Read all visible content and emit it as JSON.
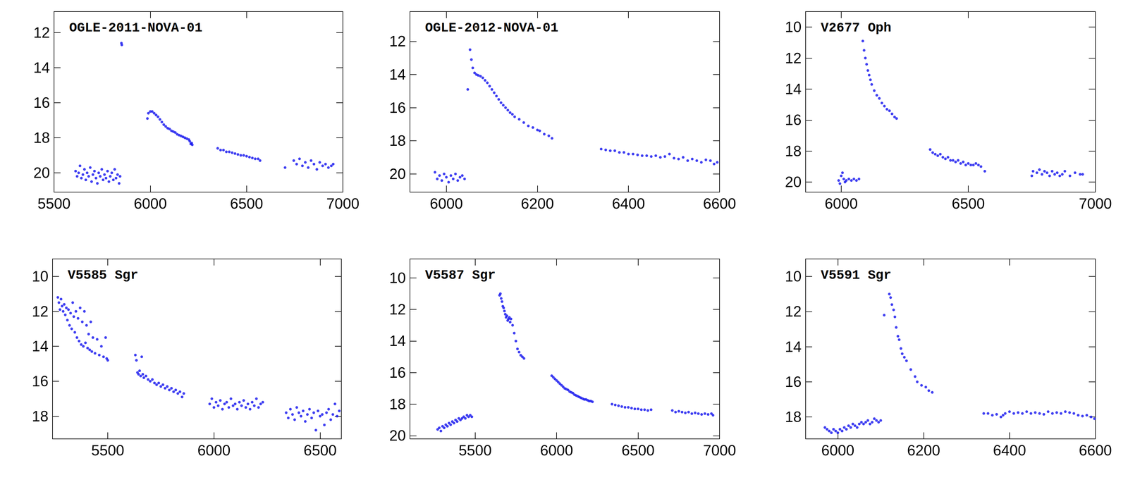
{
  "chart_data": [
    {
      "type": "scatter",
      "title": "OGLE-2011-NOVA-01",
      "color": "#1010ee",
      "marker": "circle",
      "grid": false,
      "xlim": [
        5500,
        7000
      ],
      "ylim": [
        21.1,
        10.8
      ],
      "xticks": [
        5500,
        6000,
        6500,
        7000
      ],
      "yticks": [
        12,
        14,
        16,
        18,
        20
      ],
      "x": [
        5612,
        5620,
        5628,
        5635,
        5642,
        5650,
        5658,
        5665,
        5672,
        5680,
        5688,
        5695,
        5702,
        5710,
        5718,
        5725,
        5732,
        5740,
        5748,
        5755,
        5762,
        5770,
        5778,
        5785,
        5792,
        5800,
        5808,
        5815,
        5822,
        5830,
        5838,
        5843,
        5850,
        5852,
        5985,
        5990,
        6000,
        6010,
        6020,
        6030,
        6040,
        6050,
        6060,
        6070,
        6080,
        6090,
        6100,
        6110,
        6120,
        6130,
        6140,
        6150,
        6160,
        6170,
        6180,
        6190,
        6200,
        6205,
        6210,
        6215,
        6218,
        6350,
        6365,
        6380,
        6395,
        6410,
        6425,
        6440,
        6455,
        6470,
        6485,
        6500,
        6515,
        6530,
        6545,
        6560,
        6570,
        6700,
        6745,
        6760,
        6775,
        6790,
        6805,
        6820,
        6835,
        6850,
        6865,
        6880,
        6895,
        6910,
        6925,
        6940,
        6950
      ],
      "values": [
        19.9,
        20.2,
        20.0,
        19.6,
        20.3,
        20.1,
        19.8,
        20.4,
        20.0,
        20.2,
        19.7,
        20.5,
        20.1,
        19.9,
        20.3,
        20.6,
        20.0,
        20.2,
        19.8,
        20.4,
        20.1,
        20.3,
        19.9,
        20.5,
        20.2,
        20.0,
        20.4,
        19.8,
        20.3,
        20.1,
        20.6,
        20.2,
        12.6,
        12.7,
        16.9,
        16.6,
        16.5,
        16.5,
        16.6,
        16.7,
        16.8,
        16.95,
        17.1,
        17.25,
        17.35,
        17.45,
        17.5,
        17.6,
        17.65,
        17.7,
        17.8,
        17.85,
        17.9,
        17.95,
        18.0,
        18.05,
        18.1,
        18.2,
        18.35,
        18.3,
        18.4,
        18.6,
        18.7,
        18.7,
        18.8,
        18.8,
        18.85,
        18.9,
        18.95,
        19.0,
        19.0,
        19.05,
        19.1,
        19.15,
        19.2,
        19.2,
        19.3,
        19.7,
        19.3,
        19.5,
        19.2,
        19.6,
        19.4,
        19.7,
        19.3,
        19.5,
        19.8,
        19.4,
        19.6,
        19.5,
        19.7,
        19.6,
        19.5
      ]
    },
    {
      "type": "scatter",
      "title": "OGLE-2012-NOVA-01",
      "color": "#1010ee",
      "marker": "circle",
      "grid": false,
      "xlim": [
        5920,
        6600
      ],
      "ylim": [
        21.1,
        10.2
      ],
      "xticks": [
        6000,
        6200,
        6400,
        6600
      ],
      "yticks": [
        12,
        14,
        16,
        18,
        20
      ],
      "x": [
        5975,
        5980,
        5985,
        5990,
        5995,
        6000,
        6005,
        6010,
        6015,
        6020,
        6025,
        6030,
        6035,
        6040,
        6047,
        6052,
        6055,
        6058,
        6062,
        6066,
        6070,
        6075,
        6080,
        6085,
        6090,
        6095,
        6100,
        6105,
        6110,
        6115,
        6120,
        6125,
        6130,
        6135,
        6140,
        6145,
        6150,
        6160,
        6170,
        6180,
        6190,
        6200,
        6205,
        6215,
        6225,
        6232,
        6340,
        6350,
        6360,
        6370,
        6380,
        6390,
        6400,
        6410,
        6420,
        6430,
        6440,
        6450,
        6460,
        6470,
        6480,
        6490,
        6500,
        6510,
        6520,
        6530,
        6540,
        6550,
        6560,
        6570,
        6580,
        6588,
        6595
      ],
      "values": [
        19.9,
        20.3,
        20.1,
        20.4,
        20.0,
        20.2,
        20.5,
        20.1,
        20.3,
        20.0,
        20.4,
        20.2,
        20.1,
        20.3,
        14.9,
        12.5,
        13.1,
        13.6,
        13.9,
        14.0,
        14.05,
        14.1,
        14.2,
        14.35,
        14.5,
        14.7,
        14.9,
        15.1,
        15.3,
        15.5,
        15.7,
        15.85,
        16.0,
        16.15,
        16.3,
        16.4,
        16.55,
        16.7,
        16.9,
        17.1,
        17.2,
        17.35,
        17.4,
        17.6,
        17.7,
        17.85,
        18.5,
        18.55,
        18.6,
        18.6,
        18.7,
        18.7,
        18.8,
        18.8,
        18.85,
        18.9,
        18.9,
        18.95,
        18.9,
        19.0,
        18.95,
        18.8,
        19.05,
        19.1,
        19.0,
        19.2,
        19.1,
        19.2,
        19.3,
        19.15,
        19.2,
        19.4,
        19.3
      ]
    },
    {
      "type": "scatter",
      "title": "V2677 Oph",
      "color": "#1010ee",
      "marker": "circle",
      "grid": false,
      "xlim": [
        5860,
        7000
      ],
      "ylim": [
        20.65,
        9
      ],
      "xticks": [
        6000,
        6500,
        7000
      ],
      "yticks": [
        10,
        12,
        14,
        16,
        18,
        20
      ],
      "x": [
        5990,
        5995,
        6000,
        6005,
        6010,
        6015,
        6020,
        6030,
        6040,
        6050,
        6060,
        6070,
        6085,
        6090,
        6095,
        6100,
        6105,
        6110,
        6115,
        6120,
        6130,
        6140,
        6150,
        6160,
        6170,
        6180,
        6190,
        6200,
        6210,
        6218,
        6350,
        6360,
        6370,
        6380,
        6390,
        6400,
        6410,
        6420,
        6430,
        6440,
        6450,
        6460,
        6470,
        6480,
        6490,
        6500,
        6510,
        6520,
        6530,
        6540,
        6550,
        6565,
        6750,
        6755,
        6770,
        6780,
        6790,
        6800,
        6810,
        6820,
        6830,
        6840,
        6850,
        6860,
        6870,
        6880,
        6900,
        6920,
        6940,
        6950
      ],
      "values": [
        19.9,
        20.1,
        19.6,
        19.4,
        19.8,
        20.0,
        19.9,
        19.8,
        19.9,
        19.8,
        19.9,
        19.8,
        10.9,
        11.5,
        12.0,
        12.4,
        12.8,
        13.1,
        13.4,
        13.7,
        14.1,
        14.4,
        14.6,
        14.9,
        15.1,
        15.3,
        15.4,
        15.6,
        15.8,
        15.9,
        17.9,
        18.1,
        18.2,
        18.3,
        18.2,
        18.4,
        18.5,
        18.4,
        18.6,
        18.6,
        18.7,
        18.6,
        18.8,
        18.7,
        18.9,
        18.8,
        18.9,
        18.9,
        18.8,
        18.9,
        19.0,
        19.3,
        19.6,
        19.3,
        19.4,
        19.2,
        19.5,
        19.3,
        19.4,
        19.6,
        19.3,
        19.5,
        19.4,
        19.6,
        19.5,
        19.3,
        19.6,
        19.4,
        19.5,
        19.5
      ]
    },
    {
      "type": "scatter",
      "title": "V5585 Sgr",
      "color": "#1010ee",
      "marker": "circle",
      "grid": false,
      "xlim": [
        5240,
        6600
      ],
      "ylim": [
        19.3,
        9
      ],
      "xticks": [
        5500,
        6000,
        6500
      ],
      "yticks": [
        10,
        12,
        14,
        16,
        18
      ],
      "x": [
        5265,
        5270,
        5275,
        5280,
        5285,
        5290,
        5295,
        5300,
        5305,
        5310,
        5315,
        5320,
        5325,
        5330,
        5335,
        5340,
        5345,
        5350,
        5355,
        5360,
        5365,
        5370,
        5375,
        5380,
        5385,
        5390,
        5395,
        5400,
        5405,
        5410,
        5415,
        5420,
        5425,
        5430,
        5440,
        5450,
        5460,
        5470,
        5480,
        5490,
        5495,
        5500,
        5630,
        5635,
        5640,
        5645,
        5650,
        5655,
        5660,
        5665,
        5670,
        5680,
        5690,
        5700,
        5710,
        5720,
        5730,
        5740,
        5750,
        5760,
        5770,
        5780,
        5790,
        5800,
        5810,
        5820,
        5830,
        5840,
        5850,
        5858,
        5980,
        5990,
        6000,
        6010,
        6020,
        6030,
        6040,
        6050,
        6060,
        6070,
        6080,
        6090,
        6100,
        6110,
        6120,
        6130,
        6140,
        6150,
        6160,
        6170,
        6180,
        6190,
        6200,
        6210,
        6220,
        6230,
        6340,
        6350,
        6360,
        6370,
        6380,
        6390,
        6400,
        6410,
        6420,
        6430,
        6440,
        6450,
        6460,
        6470,
        6480,
        6490,
        6500,
        6510,
        6520,
        6530,
        6540,
        6550,
        6560,
        6570,
        6580,
        6590
      ],
      "values": [
        11.2,
        11.5,
        11.9,
        11.3,
        11.7,
        12.0,
        11.6,
        12.2,
        11.8,
        12.5,
        11.9,
        12.8,
        12.1,
        13.0,
        11.5,
        12.3,
        13.2,
        12.0,
        13.5,
        12.4,
        13.7,
        11.8,
        13.9,
        12.6,
        14.0,
        12.0,
        13.8,
        12.8,
        14.1,
        13.3,
        14.2,
        12.6,
        14.3,
        13.5,
        14.4,
        13.6,
        14.5,
        14.0,
        14.6,
        13.5,
        14.7,
        14.8,
        14.5,
        14.8,
        15.5,
        15.6,
        15.4,
        15.7,
        14.6,
        15.6,
        15.8,
        15.7,
        15.9,
        16.0,
        15.9,
        16.1,
        16.2,
        16.1,
        16.3,
        16.2,
        16.4,
        16.3,
        16.5,
        16.4,
        16.6,
        16.5,
        16.7,
        16.6,
        16.9,
        16.7,
        17.3,
        17.0,
        17.5,
        17.2,
        17.4,
        17.1,
        17.6,
        17.3,
        17.2,
        17.5,
        17.0,
        17.4,
        17.3,
        17.6,
        17.2,
        17.4,
        17.1,
        17.5,
        17.3,
        17.6,
        17.2,
        17.4,
        17.0,
        17.5,
        17.3,
        17.2,
        17.8,
        18.1,
        17.6,
        17.9,
        18.2,
        17.5,
        17.8,
        18.0,
        17.7,
        18.3,
        17.9,
        17.6,
        18.1,
        17.8,
        18.8,
        17.7,
        18.0,
        17.9,
        18.5,
        17.8,
        17.6,
        18.2,
        17.9,
        17.3,
        18.0,
        17.7
      ]
    },
    {
      "type": "scatter",
      "title": "V5587 Sgr",
      "color": "#1010ee",
      "marker": "circle",
      "grid": false,
      "xlim": [
        5100,
        7000
      ],
      "ylim": [
        20.2,
        8.8
      ],
      "xticks": [
        5500,
        6000,
        6500,
        7000
      ],
      "yticks": [
        10,
        12,
        14,
        16,
        18,
        20
      ],
      "x": [
        5270,
        5280,
        5290,
        5300,
        5310,
        5320,
        5330,
        5340,
        5350,
        5360,
        5370,
        5380,
        5390,
        5400,
        5410,
        5420,
        5430,
        5440,
        5450,
        5460,
        5470,
        5480,
        5650,
        5655,
        5660,
        5665,
        5670,
        5675,
        5680,
        5685,
        5690,
        5695,
        5700,
        5705,
        5710,
        5715,
        5720,
        5730,
        5740,
        5750,
        5760,
        5770,
        5780,
        5790,
        5800,
        5970,
        5980,
        5990,
        6000,
        6010,
        6020,
        6030,
        6040,
        6050,
        6060,
        6070,
        6080,
        6090,
        6100,
        6110,
        6120,
        6130,
        6140,
        6150,
        6160,
        6170,
        6180,
        6190,
        6200,
        6210,
        6220,
        6340,
        6360,
        6380,
        6400,
        6420,
        6440,
        6460,
        6480,
        6500,
        6520,
        6540,
        6560,
        6580,
        6710,
        6730,
        6750,
        6770,
        6790,
        6810,
        6830,
        6850,
        6870,
        6890,
        6910,
        6930,
        6950,
        6960
      ],
      "values": [
        19.6,
        19.5,
        19.7,
        19.4,
        19.5,
        19.3,
        19.4,
        19.2,
        19.3,
        19.1,
        19.2,
        19.0,
        19.1,
        18.9,
        19.0,
        18.9,
        18.8,
        18.9,
        18.7,
        18.8,
        18.7,
        18.8,
        11.1,
        11.0,
        11.3,
        11.5,
        11.8,
        11.9,
        12.1,
        12.3,
        12.5,
        12.4,
        12.7,
        12.6,
        12.5,
        12.8,
        12.6,
        13.0,
        13.5,
        14.0,
        14.5,
        14.7,
        14.9,
        15.0,
        15.1,
        16.2,
        16.3,
        16.4,
        16.5,
        16.6,
        16.7,
        16.8,
        16.9,
        17.0,
        17.05,
        17.1,
        17.2,
        17.25,
        17.3,
        17.4,
        17.45,
        17.5,
        17.55,
        17.6,
        17.65,
        17.7,
        17.7,
        17.75,
        17.8,
        17.8,
        17.85,
        18.0,
        18.05,
        18.1,
        18.15,
        18.2,
        18.2,
        18.25,
        18.3,
        18.3,
        18.35,
        18.35,
        18.4,
        18.35,
        18.4,
        18.5,
        18.45,
        18.5,
        18.55,
        18.5,
        18.6,
        18.55,
        18.6,
        18.65,
        18.6,
        18.65,
        18.6,
        18.7
      ]
    },
    {
      "type": "scatter",
      "title": "V5591 Sgr",
      "color": "#1010ee",
      "marker": "circle",
      "grid": false,
      "xlim": [
        5925,
        6600
      ],
      "ylim": [
        19.25,
        9
      ],
      "xticks": [
        6000,
        6200,
        6400,
        6600
      ],
      "yticks": [
        10,
        12,
        14,
        16,
        18
      ],
      "x": [
        5970,
        5975,
        5980,
        5985,
        5990,
        5995,
        6000,
        6005,
        6010,
        6015,
        6020,
        6025,
        6030,
        6035,
        6040,
        6045,
        6050,
        6055,
        6060,
        6065,
        6070,
        6075,
        6080,
        6085,
        6090,
        6095,
        6100,
        6108,
        6120,
        6123,
        6126,
        6130,
        6133,
        6136,
        6140,
        6143,
        6147,
        6150,
        6155,
        6160,
        6170,
        6180,
        6185,
        6195,
        6205,
        6212,
        6220,
        6340,
        6350,
        6360,
        6370,
        6380,
        6385,
        6390,
        6400,
        6410,
        6420,
        6430,
        6440,
        6450,
        6460,
        6470,
        6480,
        6490,
        6500,
        6510,
        6520,
        6530,
        6540,
        6550,
        6560,
        6570,
        6580,
        6590,
        6598
      ],
      "values": [
        18.6,
        18.7,
        18.8,
        18.9,
        18.7,
        18.8,
        18.9,
        18.7,
        18.8,
        18.6,
        18.7,
        18.5,
        18.6,
        18.4,
        18.5,
        18.6,
        18.4,
        18.3,
        18.4,
        18.3,
        18.2,
        18.4,
        18.3,
        18.1,
        18.2,
        18.3,
        18.2,
        12.2,
        11.0,
        11.2,
        11.6,
        11.9,
        12.3,
        12.9,
        13.4,
        13.6,
        14.1,
        14.4,
        14.6,
        14.8,
        15.3,
        15.7,
        16.0,
        16.2,
        16.3,
        16.5,
        16.6,
        17.8,
        17.8,
        17.9,
        17.85,
        18.0,
        17.9,
        17.8,
        17.7,
        17.8,
        17.75,
        17.8,
        17.7,
        17.8,
        17.75,
        17.8,
        17.85,
        17.7,
        17.8,
        17.75,
        17.8,
        17.7,
        17.75,
        17.8,
        17.9,
        17.95,
        17.9,
        18.0,
        18.1
      ]
    }
  ]
}
